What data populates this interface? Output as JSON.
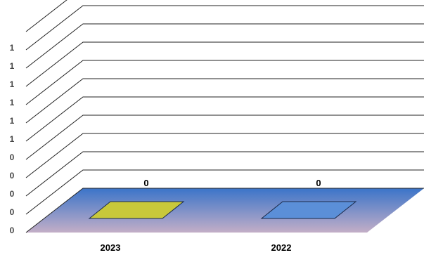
{
  "chart_data": {
    "type": "bar",
    "categories": [
      "2023",
      "2022"
    ],
    "series": [
      {
        "values": [
          0,
          0
        ]
      }
    ],
    "y_tick_labels": [
      "0",
      "0",
      "0",
      "0",
      "0",
      "1",
      "1",
      "1",
      "1",
      "1",
      "1"
    ],
    "data_labels": [
      "0",
      "0"
    ],
    "ylim": [
      0,
      1
    ],
    "grid": true,
    "style": "3d",
    "colors": {
      "floor_top": "#3b74c9",
      "floor_bottom": "#c3aec7",
      "bar_2023": "#c8c83a",
      "bar_2022": "#5b8fd8",
      "gridline": "#222222"
    }
  }
}
